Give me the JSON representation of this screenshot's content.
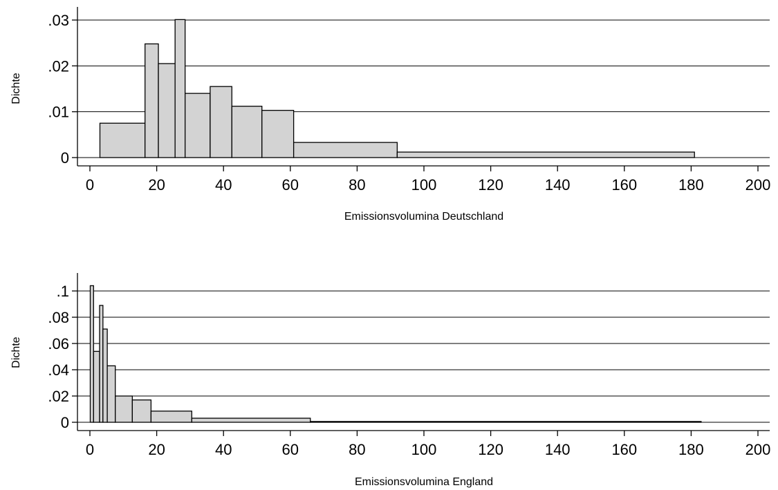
{
  "chart_data": [
    {
      "type": "bar",
      "subtype": "histogram",
      "xlabel": "Emissionsvolumina Deutschland",
      "ylabel": "Dichte",
      "xlim": [
        0,
        200
      ],
      "ylim": [
        0,
        0.03
      ],
      "xticks": [
        0,
        20,
        40,
        60,
        80,
        100,
        120,
        140,
        160,
        180,
        200
      ],
      "xtick_labels": [
        "0",
        "20",
        "40",
        "60",
        "80",
        "100",
        "120",
        "140",
        "160",
        "180",
        "200"
      ],
      "yticks": [
        0,
        0.01,
        0.02,
        0.03
      ],
      "ytick_labels": [
        "0",
        ".01",
        ".02",
        ".03"
      ],
      "grid": true,
      "bar_color": "#d3d3d3",
      "bins": [
        {
          "x0": 3,
          "x1": 16.5,
          "value": 0.0075
        },
        {
          "x0": 16.5,
          "x1": 20.5,
          "value": 0.0248
        },
        {
          "x0": 20.5,
          "x1": 25.5,
          "value": 0.0205
        },
        {
          "x0": 25.5,
          "x1": 28.5,
          "value": 0.0301
        },
        {
          "x0": 28.5,
          "x1": 36,
          "value": 0.014
        },
        {
          "x0": 36,
          "x1": 42.5,
          "value": 0.0155
        },
        {
          "x0": 42.5,
          "x1": 51.5,
          "value": 0.0112
        },
        {
          "x0": 51.5,
          "x1": 61,
          "value": 0.0103
        },
        {
          "x0": 61,
          "x1": 92,
          "value": 0.0033
        },
        {
          "x0": 92,
          "x1": 181,
          "value": 0.0012
        }
      ]
    },
    {
      "type": "bar",
      "subtype": "histogram",
      "xlabel": "Emissionsvolumina England",
      "ylabel": "Dichte",
      "xlim": [
        0,
        200
      ],
      "ylim": [
        0,
        0.1
      ],
      "xticks": [
        0,
        20,
        40,
        60,
        80,
        100,
        120,
        140,
        160,
        180,
        200
      ],
      "xtick_labels": [
        "0",
        "20",
        "40",
        "60",
        "80",
        "100",
        "120",
        "140",
        "160",
        "180",
        "200"
      ],
      "yticks": [
        0,
        0.02,
        0.04,
        0.06,
        0.08,
        0.1
      ],
      "ytick_labels": [
        "0",
        ".02",
        ".04",
        ".06",
        ".08",
        ".1"
      ],
      "grid": true,
      "bar_color": "#d3d3d3",
      "bins": [
        {
          "x0": 0.1,
          "x1": 1.1,
          "value": 0.104
        },
        {
          "x0": 1.1,
          "x1": 2.9,
          "value": 0.054
        },
        {
          "x0": 2.9,
          "x1": 3.9,
          "value": 0.089
        },
        {
          "x0": 3.9,
          "x1": 5.2,
          "value": 0.071
        },
        {
          "x0": 5.2,
          "x1": 7.6,
          "value": 0.043
        },
        {
          "x0": 7.6,
          "x1": 12.7,
          "value": 0.02
        },
        {
          "x0": 12.7,
          "x1": 18.3,
          "value": 0.017
        },
        {
          "x0": 18.3,
          "x1": 30.5,
          "value": 0.0085
        },
        {
          "x0": 30.5,
          "x1": 66,
          "value": 0.0031
        },
        {
          "x0": 66,
          "x1": 183,
          "value": 0.0006
        }
      ]
    }
  ]
}
